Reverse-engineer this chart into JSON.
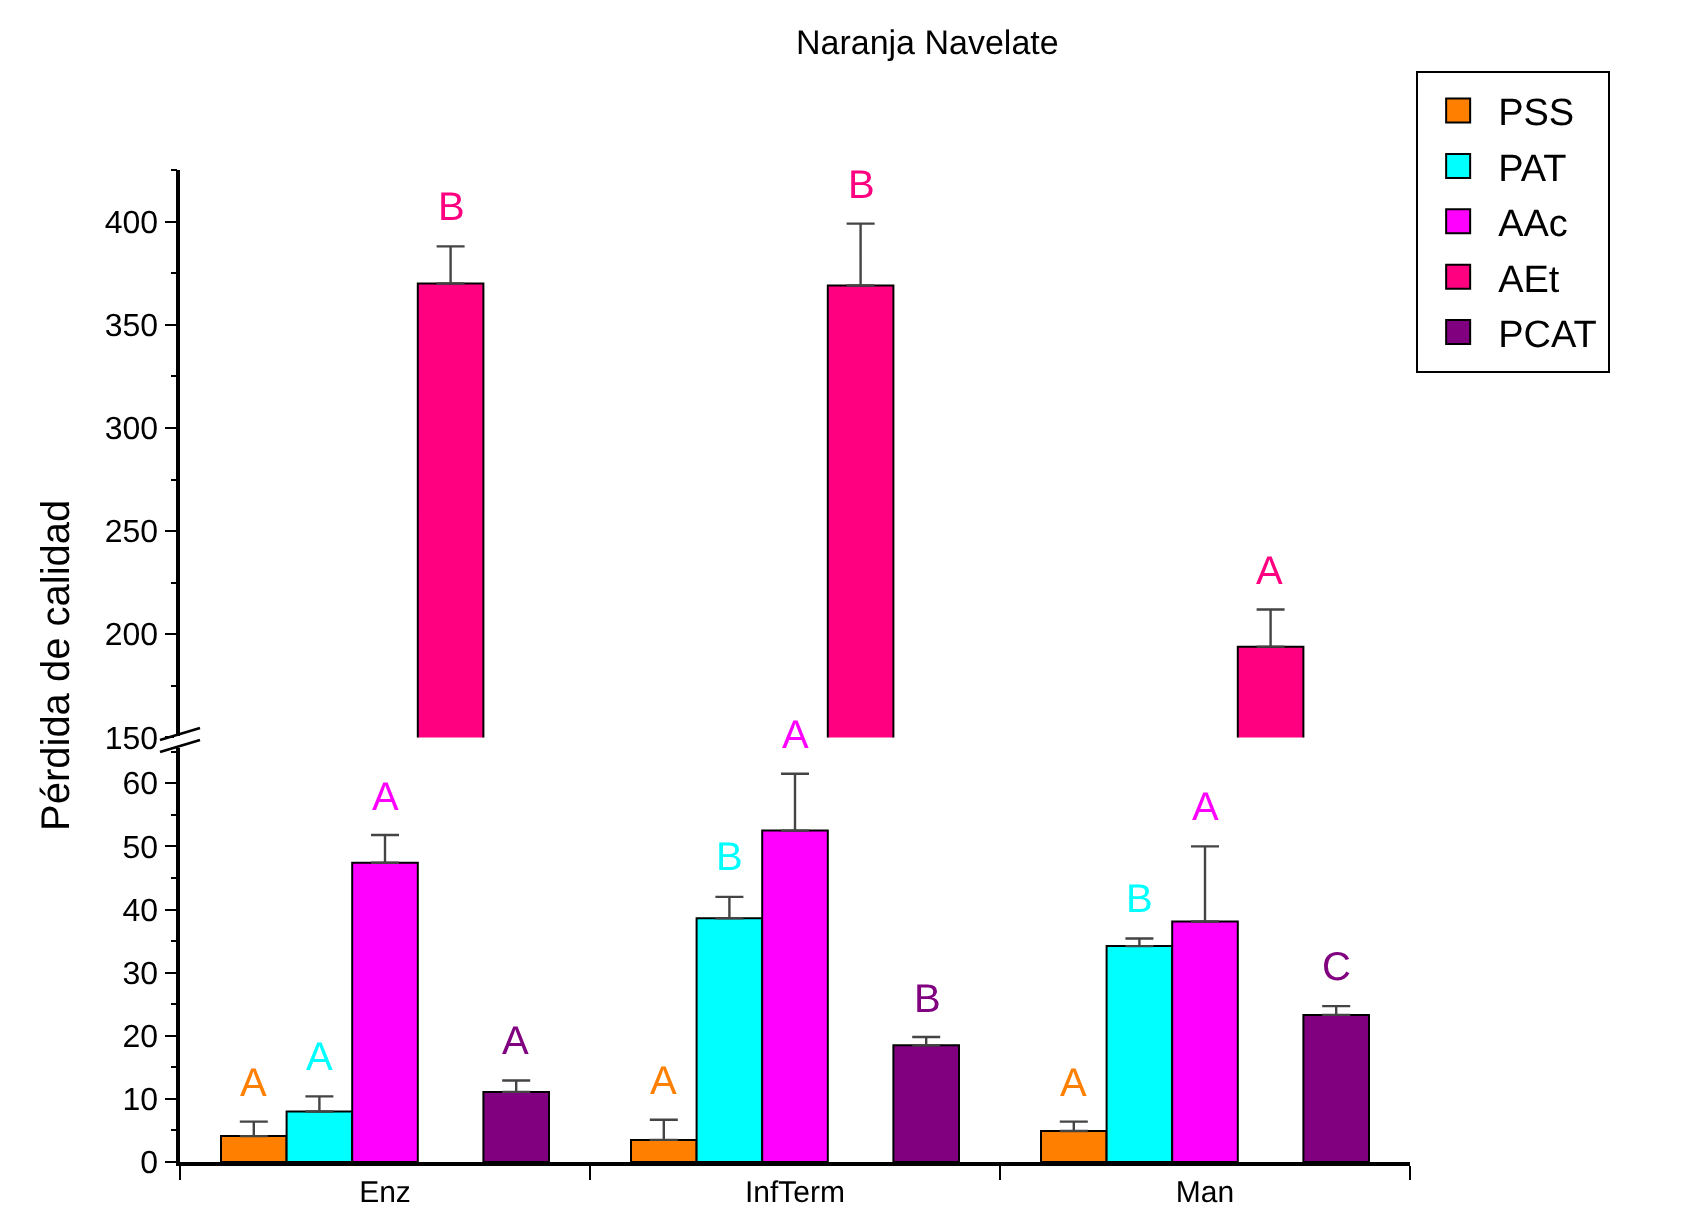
{
  "chart_data": [
    {
      "type": "bar",
      "title": "Naranja Navelate",
      "categories": [
        null,
        null,
        null
      ],
      "series": [
        {
          "color": "#ff0080",
          "values": [
            370,
            369,
            194
          ],
          "errors": [
            [
              370,
              388
            ],
            [
              369,
              399
            ],
            [
              194,
              212
            ]
          ],
          "value_labels": [
            "B",
            "B",
            "A"
          ]
        }
      ],
      "ylim": [
        150,
        425
      ],
      "yticks": [
        150,
        200,
        250,
        300,
        350,
        400
      ],
      "tick_labels": "y",
      "grid": false,
      "legend": false
    },
    {
      "type": "bar",
      "ylabel": "Pérdida de calidad",
      "categories": [
        "Enz",
        "InfTerm",
        "Man"
      ],
      "series": [
        {
          "name": "PSS",
          "color": "#ff8000",
          "values": [
            4.1,
            3.5,
            4.9
          ],
          "errors": [
            [
              4.1,
              6.4
            ],
            [
              3.5,
              6.7
            ],
            [
              4.9,
              6.4
            ]
          ],
          "value_labels": [
            "A",
            "A",
            "A"
          ]
        },
        {
          "name": "PAT",
          "color": "#00ffff",
          "values": [
            8.0,
            38.6,
            34.2
          ],
          "errors": [
            [
              8.0,
              10.4
            ],
            [
              38.6,
              42.0
            ],
            [
              34.2,
              35.4
            ]
          ],
          "value_labels": [
            "A",
            "B",
            "B"
          ]
        },
        {
          "name": "AAc",
          "color": "#ff00ff",
          "values": [
            47.4,
            52.5,
            38.1
          ],
          "errors": [
            [
              47.4,
              51.8
            ],
            [
              52.5,
              61.5
            ],
            [
              38.1,
              50.0
            ]
          ],
          "value_labels": [
            "A",
            "A",
            "A"
          ]
        },
        {
          "name": "AEt",
          "color": "#ff0080",
          "values": [
            null,
            null,
            null
          ]
        },
        {
          "name": "PCAT",
          "color": "#800080",
          "values": [
            11.1,
            18.5,
            23.3
          ],
          "errors": [
            [
              11.1,
              12.9
            ],
            [
              18.5,
              19.8
            ],
            [
              23.3,
              24.7
            ]
          ],
          "value_labels": [
            "A",
            "B",
            "C"
          ]
        }
      ],
      "ylim": [
        0,
        66
      ],
      "yticks": [
        0,
        10,
        20,
        30,
        40,
        50,
        60
      ],
      "grid": false,
      "legend": "top right"
    }
  ]
}
